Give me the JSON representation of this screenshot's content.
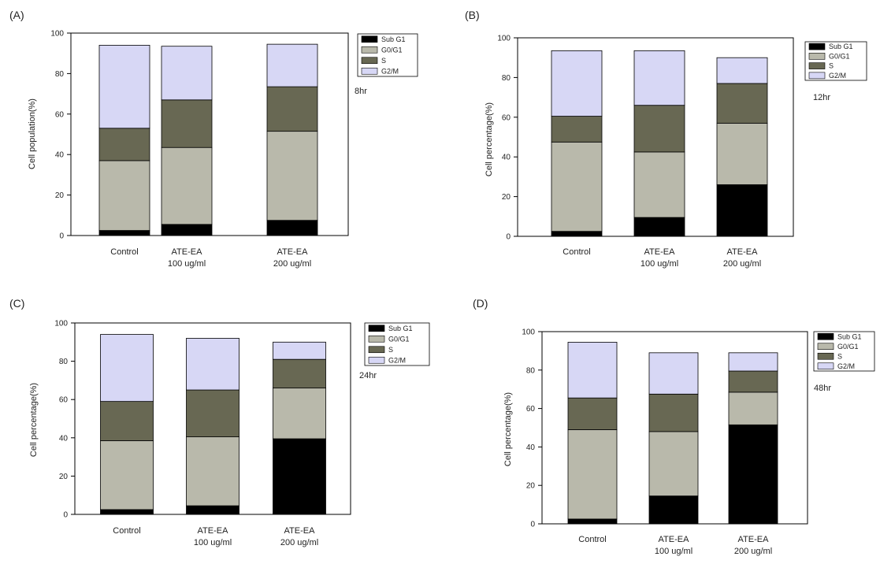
{
  "colors": {
    "sub_g1": "#000000",
    "g0_g1": "#b9b9ab",
    "s": "#686853",
    "g2_m": "#d7d7f5",
    "axis": "#000000"
  },
  "chart_data": [
    {
      "type": "bar",
      "stacked": true,
      "panel": "(A)",
      "timepoint": "8hr",
      "ylabel": "Cell population(%)",
      "xlabel": "",
      "ylim": [
        0,
        100
      ],
      "yticks": [
        0,
        20,
        40,
        60,
        80,
        100
      ],
      "categories": [
        [
          "Control"
        ],
        [
          "ATE-EA",
          "100 ug/ml"
        ],
        [
          "ATE-EA",
          "200 ug/ml"
        ]
      ],
      "legend": [
        "Sub G1",
        "G0/G1",
        "S",
        "G2/M"
      ],
      "series": [
        {
          "name": "Sub G1",
          "key": "sub_g1",
          "values": [
            2.5,
            5.5,
            7.5
          ]
        },
        {
          "name": "G0/G1",
          "key": "g0_g1",
          "values": [
            34.5,
            38,
            44
          ]
        },
        {
          "name": "S",
          "key": "s",
          "values": [
            16,
            23.5,
            22
          ]
        },
        {
          "name": "G2/M",
          "key": "g2_m",
          "values": [
            41,
            26.5,
            21
          ]
        }
      ]
    },
    {
      "type": "bar",
      "stacked": true,
      "panel": "(B)",
      "timepoint": "12hr",
      "ylabel": "Cell percentage(%)",
      "xlabel": "",
      "ylim": [
        0,
        100
      ],
      "yticks": [
        0,
        20,
        40,
        60,
        80,
        100
      ],
      "categories": [
        [
          "Control"
        ],
        [
          "ATE-EA",
          "100 ug/ml"
        ],
        [
          "ATE-EA",
          "200 ug/ml"
        ]
      ],
      "legend": [
        "Sub G1",
        "G0/G1",
        "S",
        "G2/M"
      ],
      "series": [
        {
          "name": "Sub G1",
          "key": "sub_g1",
          "values": [
            2.5,
            9.5,
            26
          ]
        },
        {
          "name": "G0/G1",
          "key": "g0_g1",
          "values": [
            45,
            33,
            31
          ]
        },
        {
          "name": "S",
          "key": "s",
          "values": [
            13,
            23.5,
            20
          ]
        },
        {
          "name": "G2/M",
          "key": "g2_m",
          "values": [
            33,
            27.5,
            13
          ]
        }
      ]
    },
    {
      "type": "bar",
      "stacked": true,
      "panel": "(C)",
      "timepoint": "24hr",
      "ylabel": "Cell percentage(%)",
      "xlabel": "",
      "ylim": [
        0,
        100
      ],
      "yticks": [
        0,
        20,
        40,
        60,
        80,
        100
      ],
      "categories": [
        [
          "Control"
        ],
        [
          "ATE-EA",
          "100 ug/ml"
        ],
        [
          "ATE-EA",
          "200 ug/ml"
        ]
      ],
      "legend": [
        "Sub G1",
        "G0/G1",
        "S",
        "G2/M"
      ],
      "series": [
        {
          "name": "Sub G1",
          "key": "sub_g1",
          "values": [
            2.5,
            4.5,
            39.5
          ]
        },
        {
          "name": "G0/G1",
          "key": "g0_g1",
          "values": [
            36,
            36,
            26.5
          ]
        },
        {
          "name": "S",
          "key": "s",
          "values": [
            20.5,
            24.5,
            15
          ]
        },
        {
          "name": "G2/M",
          "key": "g2_m",
          "values": [
            35,
            27,
            9
          ]
        }
      ]
    },
    {
      "type": "bar",
      "stacked": true,
      "panel": "(D)",
      "timepoint": "48hr",
      "ylabel": "Cell percentage(%)",
      "xlabel": "",
      "ylim": [
        0,
        100
      ],
      "yticks": [
        0,
        20,
        40,
        60,
        80,
        100
      ],
      "categories": [
        [
          "Control"
        ],
        [
          "ATE-EA",
          "100 ug/ml"
        ],
        [
          "ATE-EA",
          "200 ug/ml"
        ]
      ],
      "legend": [
        "Sub G1",
        "G0/G1",
        "S",
        "G2/M"
      ],
      "series": [
        {
          "name": "Sub G1",
          "key": "sub_g1",
          "values": [
            2.5,
            14.5,
            51.5
          ]
        },
        {
          "name": "G0/G1",
          "key": "g0_g1",
          "values": [
            46.5,
            33.5,
            17
          ]
        },
        {
          "name": "S",
          "key": "s",
          "values": [
            16.5,
            19.5,
            11
          ]
        },
        {
          "name": "G2/M",
          "key": "g2_m",
          "values": [
            29,
            21.5,
            9.5
          ]
        }
      ]
    }
  ]
}
